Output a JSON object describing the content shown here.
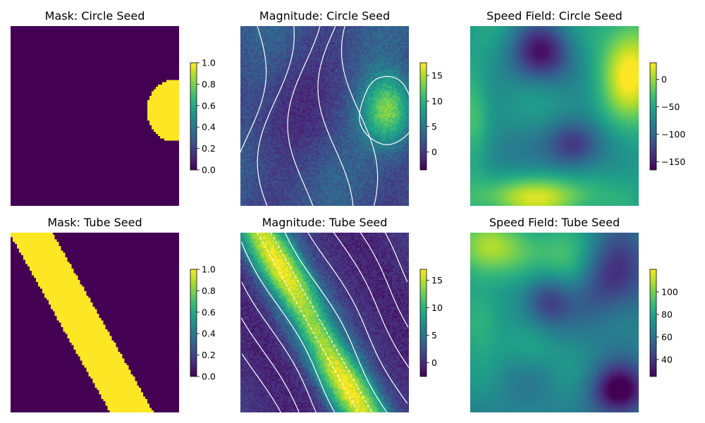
{
  "figure": {
    "background": "#ffffff"
  },
  "colormap": [
    "#440154",
    "#482878",
    "#3e4989",
    "#31688e",
    "#26828e",
    "#1f9e89",
    "#35b779",
    "#6ece58",
    "#b5de2b",
    "#fde725"
  ],
  "chart_data": [
    {
      "type": "heatmap",
      "title": "Mask: Circle Seed",
      "seed": "circle",
      "field": "mask",
      "vmin": 0,
      "vmax": 1,
      "colorbar_ticks": [
        0.0,
        0.2,
        0.4,
        0.6,
        0.8,
        1.0
      ],
      "colorbar_tick_labels": [
        "0.0",
        "0.2",
        "0.4",
        "0.6",
        "0.8",
        "1.0"
      ],
      "mask_region": {
        "shape": "disc",
        "center_col": 0.98,
        "center_row": 0.47,
        "radius": 0.17
      }
    },
    {
      "type": "heatmap",
      "title": "Magnitude: Circle Seed",
      "seed": "circle",
      "field": "magnitude",
      "vmin": -3.5,
      "vmax": 17.5,
      "colorbar_ticks": [
        0,
        5,
        10,
        15
      ],
      "colorbar_tick_labels": [
        "0",
        "5",
        "10",
        "15"
      ],
      "contours": "white",
      "dashed_contour": false
    },
    {
      "type": "heatmap",
      "title": "Speed Field: Circle Seed",
      "seed": "circle",
      "field": "speed",
      "vmin": -165,
      "vmax": 30,
      "colorbar_ticks": [
        0,
        -50,
        -100,
        -150
      ],
      "colorbar_tick_labels": [
        "0",
        "−50",
        "−100",
        "−150"
      ]
    },
    {
      "type": "heatmap",
      "title": "Mask: Tube Seed",
      "seed": "tube",
      "field": "mask",
      "vmin": 0,
      "vmax": 1,
      "colorbar_ticks": [
        0.0,
        0.2,
        0.4,
        0.6,
        0.8,
        1.0
      ],
      "colorbar_tick_labels": [
        "0.0",
        "0.2",
        "0.4",
        "0.6",
        "0.8",
        "1.0"
      ],
      "mask_region": {
        "shape": "band",
        "start": [
          0.12,
          0.0
        ],
        "end": [
          0.72,
          1.0
        ],
        "half_width": 0.11
      }
    },
    {
      "type": "heatmap",
      "title": "Magnitude: Tube Seed",
      "seed": "tube",
      "field": "magnitude",
      "vmin": -2.5,
      "vmax": 17,
      "colorbar_ticks": [
        0,
        5,
        10,
        15
      ],
      "colorbar_tick_labels": [
        "0",
        "5",
        "10",
        "15"
      ],
      "contours": "white",
      "dashed_contour": true
    },
    {
      "type": "heatmap",
      "title": "Speed Field: Tube Seed",
      "seed": "tube",
      "field": "speed",
      "vmin": 25,
      "vmax": 120,
      "colorbar_ticks": [
        40,
        60,
        80,
        100
      ],
      "colorbar_tick_labels": [
        "40",
        "60",
        "80",
        "100"
      ]
    }
  ]
}
